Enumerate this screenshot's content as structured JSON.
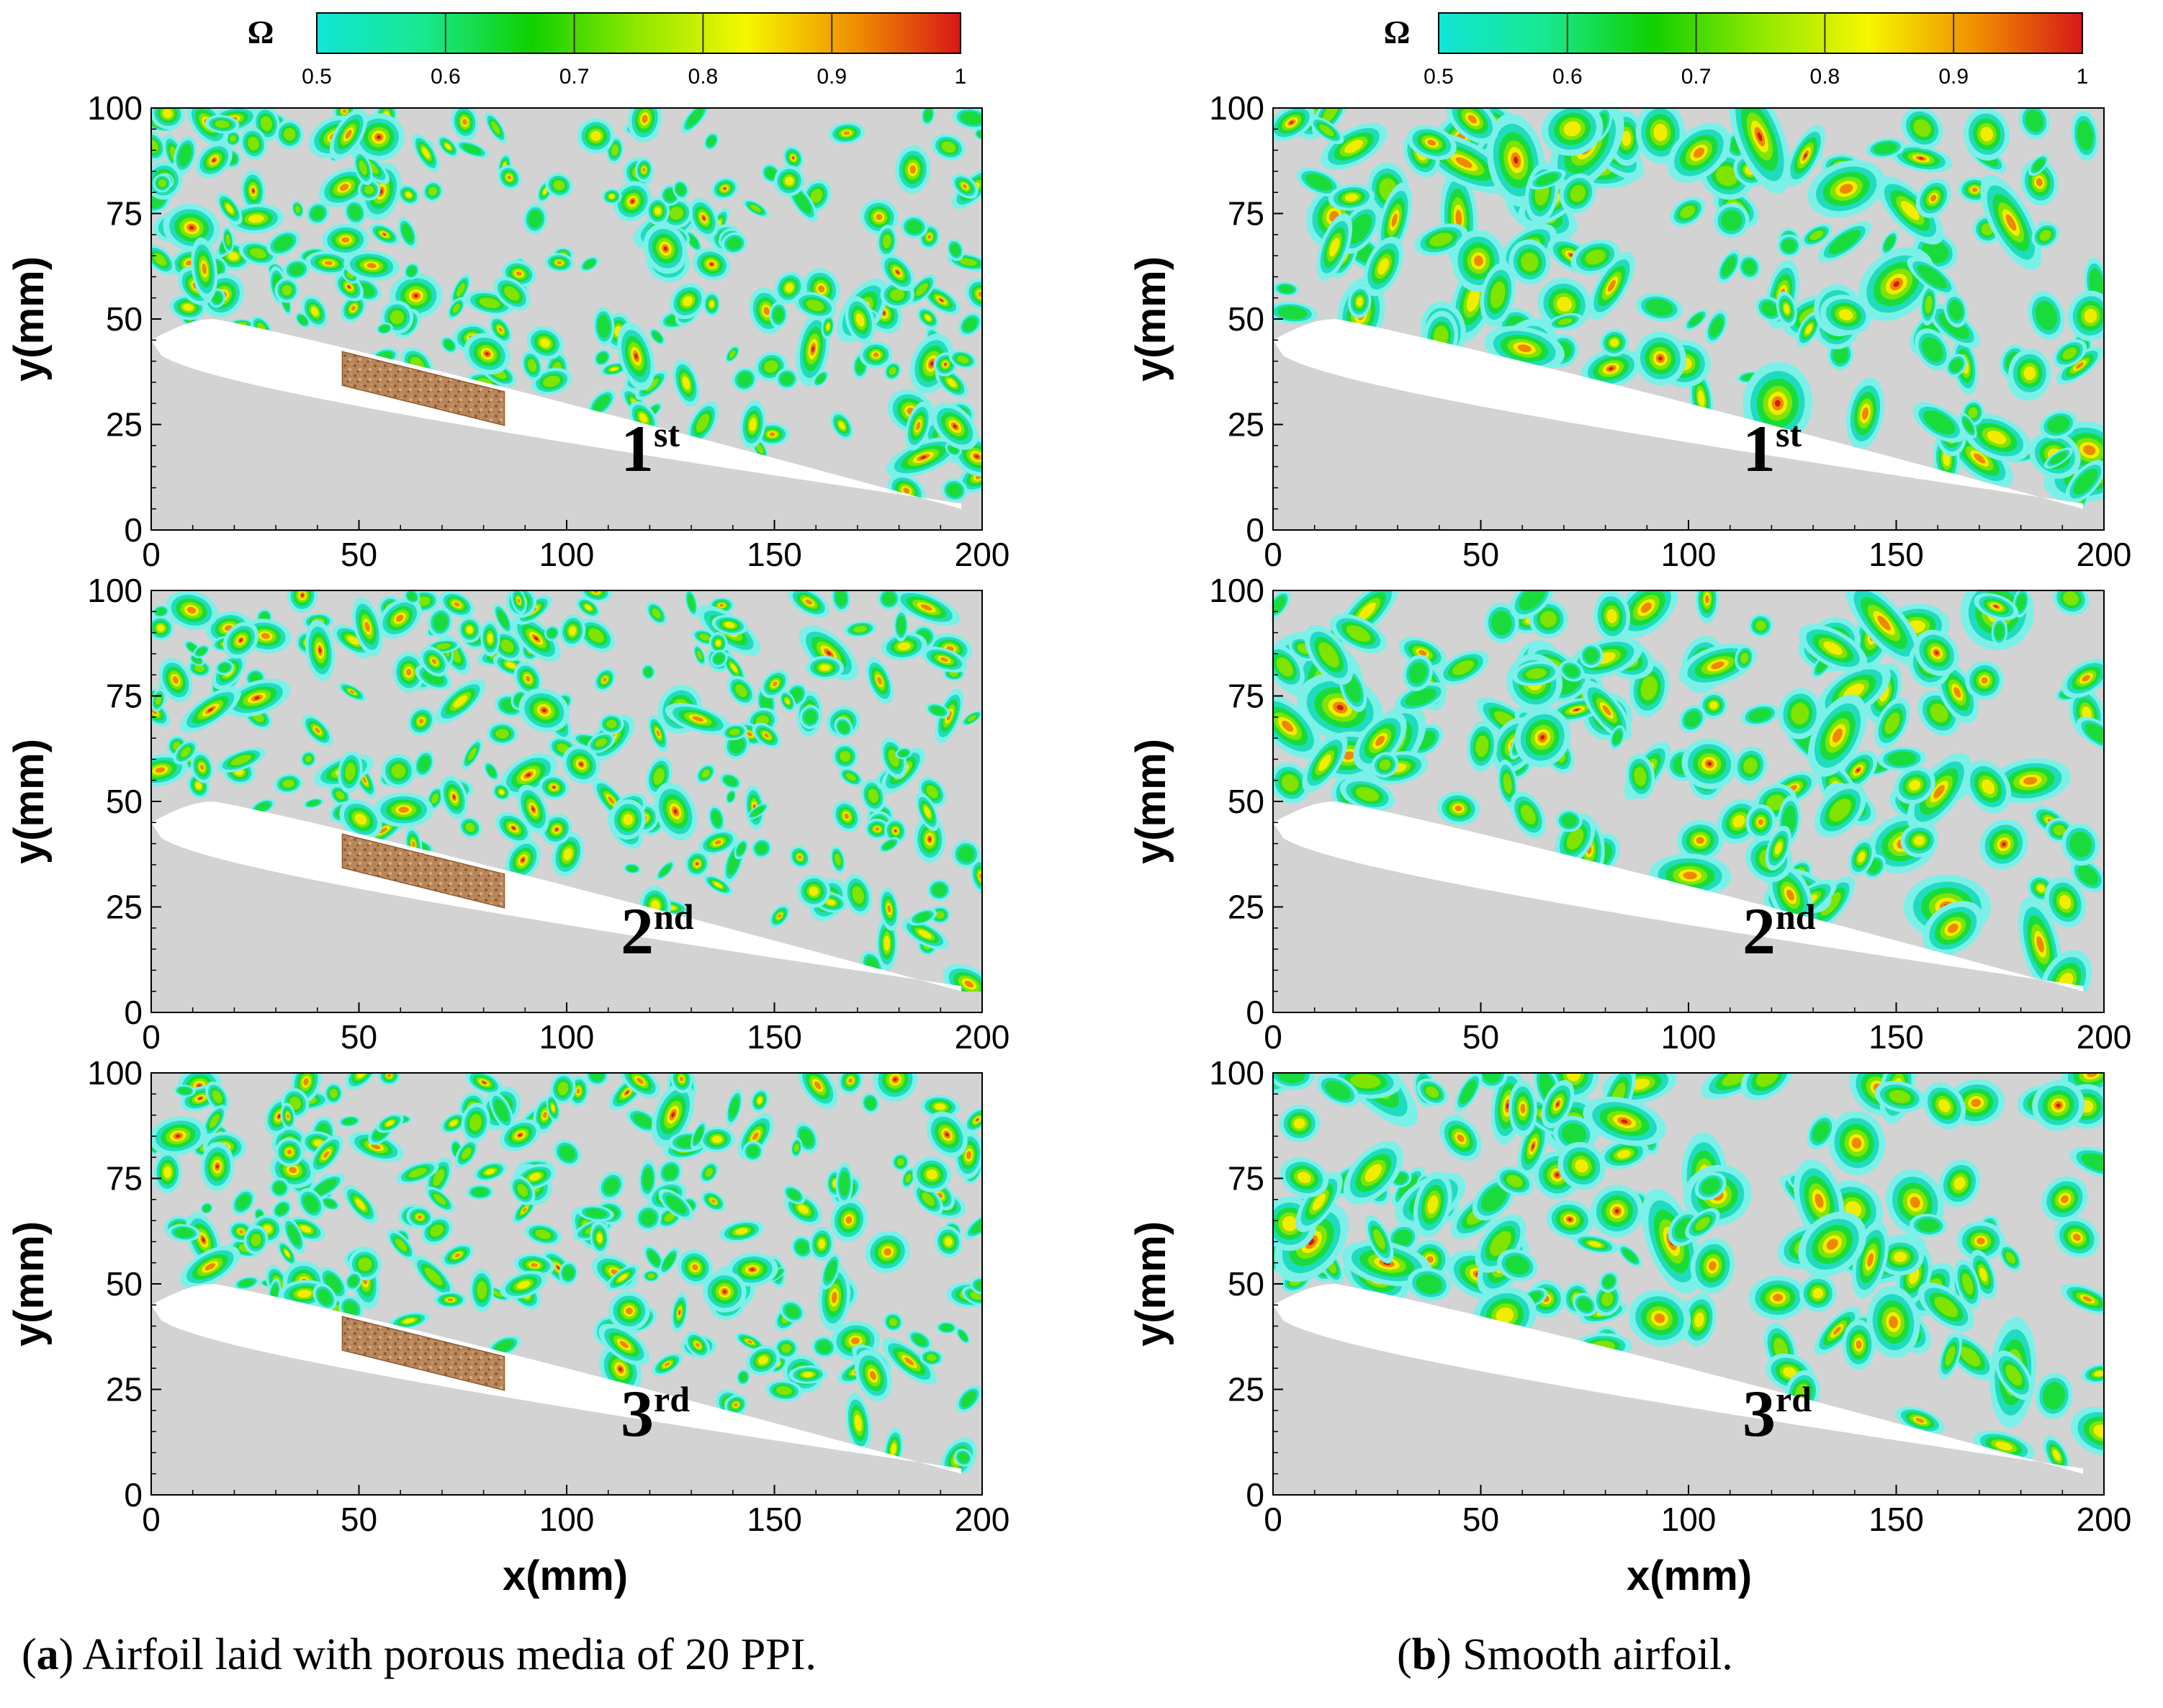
{
  "chart_data": {
    "type": "heatmap",
    "description_variable": "Ω",
    "colorbar": {
      "label": "Ω",
      "ticks": [
        "0.5",
        "0.6",
        "0.7",
        "0.8",
        "0.9",
        "1"
      ],
      "range": [
        0.5,
        1.0
      ],
      "colors": [
        "#10e6d6",
        "#18e890",
        "#10d000",
        "#90e800",
        "#f6f600",
        "#f09000",
        "#d81818"
      ]
    },
    "x_axis": {
      "label": "x(mm)",
      "range": [
        0,
        200
      ],
      "ticks": [
        "0",
        "50",
        "100",
        "150",
        "200"
      ]
    },
    "y_axis": {
      "label": "y(mm)",
      "range": [
        0,
        100
      ],
      "ticks": [
        "0",
        "25",
        "50",
        "75",
        "100"
      ]
    },
    "background_color": "#d3d3d3",
    "panels": [
      {
        "column": "a",
        "row": 1,
        "ordinal": "1",
        "suffix": "st",
        "porous_insert": true
      },
      {
        "column": "a",
        "row": 2,
        "ordinal": "2",
        "suffix": "nd",
        "porous_insert": true
      },
      {
        "column": "a",
        "row": 3,
        "ordinal": "3",
        "suffix": "rd",
        "porous_insert": true
      },
      {
        "column": "b",
        "row": 1,
        "ordinal": "1",
        "suffix": "st",
        "porous_insert": false
      },
      {
        "column": "b",
        "row": 2,
        "ordinal": "2",
        "suffix": "nd",
        "porous_insert": false
      },
      {
        "column": "b",
        "row": 3,
        "ordinal": "3",
        "suffix": "rd",
        "porous_insert": false
      }
    ],
    "porous_color": "#b8865a"
  },
  "captions": {
    "a": {
      "letter": "a",
      "text": " Airfoil laid with porous media of 20 PPI."
    },
    "b": {
      "letter": "b",
      "text": " Smooth airfoil."
    }
  }
}
